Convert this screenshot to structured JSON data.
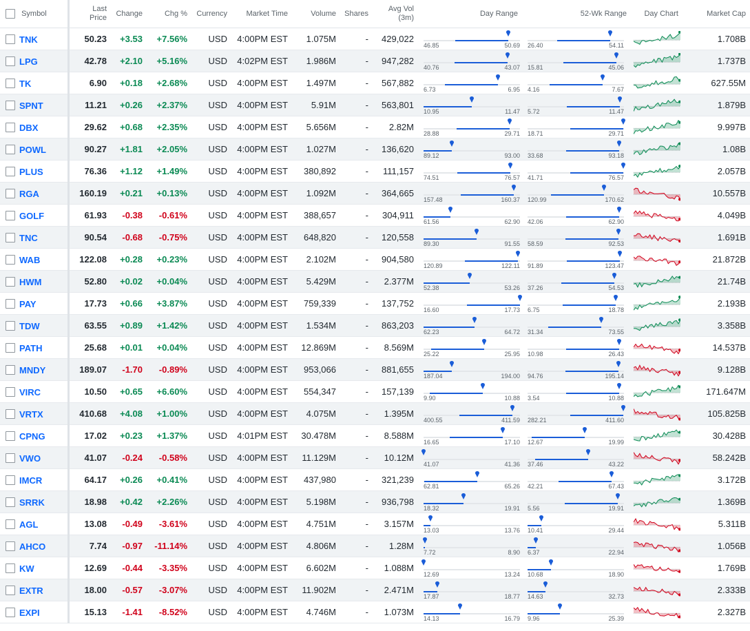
{
  "header": {
    "symbol": "Symbol",
    "last_price": "Last Price",
    "change": "Change",
    "chg_pct": "Chg %",
    "currency": "Currency",
    "market_time": "Market Time",
    "volume": "Volume",
    "shares": "Shares",
    "avg_vol": "Avg Vol (3m)",
    "day_range": "Day Range",
    "wk_range": "52-Wk Range",
    "day_chart": "Day Chart",
    "market_cap": "Market Cap"
  },
  "colors": {
    "up": "#0b8a54",
    "down": "#d0021b",
    "link": "#0f69ff",
    "range_bar": "#1a5dd8"
  },
  "rows": [
    {
      "symbol": "TNK",
      "price": "50.23",
      "change": "+3.53",
      "pct": "+7.56%",
      "currency": "USD",
      "time": "4:00PM EST",
      "volume": "1.075M",
      "shares": "-",
      "avg_vol": "429,022",
      "day_lo": "46.85",
      "day_hi": "50.69",
      "day_price": 50.23,
      "wk_lo": "26.40",
      "wk_hi": "54.11",
      "wk_price": 50.23,
      "market_cap": "1.708B",
      "trend": "up"
    },
    {
      "symbol": "LPG",
      "price": "42.78",
      "change": "+2.10",
      "pct": "+5.16%",
      "currency": "USD",
      "time": "4:02PM EST",
      "volume": "1.986M",
      "shares": "-",
      "avg_vol": "947,282",
      "day_lo": "40.76",
      "day_hi": "43.07",
      "day_price": 42.78,
      "wk_lo": "15.81",
      "wk_hi": "45.06",
      "wk_price": 42.78,
      "market_cap": "1.737B",
      "trend": "up"
    },
    {
      "symbol": "TK",
      "price": "6.90",
      "change": "+0.18",
      "pct": "+2.68%",
      "currency": "USD",
      "time": "4:00PM EST",
      "volume": "1.497M",
      "shares": "-",
      "avg_vol": "567,882",
      "day_lo": "6.73",
      "day_hi": "6.95",
      "day_price": 6.9,
      "wk_lo": "4.16",
      "wk_hi": "7.67",
      "wk_price": 6.9,
      "market_cap": "627.55M",
      "trend": "up"
    },
    {
      "symbol": "SPNT",
      "price": "11.21",
      "change": "+0.26",
      "pct": "+2.37%",
      "currency": "USD",
      "time": "4:00PM EST",
      "volume": "5.91M",
      "shares": "-",
      "avg_vol": "563,801",
      "day_lo": "10.95",
      "day_hi": "11.47",
      "day_price": 11.21,
      "wk_lo": "5.72",
      "wk_hi": "11.47",
      "wk_price": 11.21,
      "market_cap": "1.879B",
      "trend": "up"
    },
    {
      "symbol": "DBX",
      "price": "29.62",
      "change": "+0.68",
      "pct": "+2.35%",
      "currency": "USD",
      "time": "4:00PM EST",
      "volume": "5.656M",
      "shares": "-",
      "avg_vol": "2.82M",
      "day_lo": "28.88",
      "day_hi": "29.71",
      "day_price": 29.62,
      "wk_lo": "18.71",
      "wk_hi": "29.71",
      "wk_price": 29.62,
      "market_cap": "9.997B",
      "trend": "up"
    },
    {
      "symbol": "POWL",
      "price": "90.27",
      "change": "+1.81",
      "pct": "+2.05%",
      "currency": "USD",
      "time": "4:00PM EST",
      "volume": "1.027M",
      "shares": "-",
      "avg_vol": "136,620",
      "day_lo": "89.12",
      "day_hi": "93.00",
      "day_price": 90.27,
      "wk_lo": "33.68",
      "wk_hi": "93.18",
      "wk_price": 90.27,
      "market_cap": "1.08B",
      "trend": "up"
    },
    {
      "symbol": "PLUS",
      "price": "76.36",
      "change": "+1.12",
      "pct": "+1.49%",
      "currency": "USD",
      "time": "4:00PM EST",
      "volume": "380,892",
      "shares": "-",
      "avg_vol": "111,157",
      "day_lo": "74.51",
      "day_hi": "76.57",
      "day_price": 76.36,
      "wk_lo": "41.71",
      "wk_hi": "76.57",
      "wk_price": 76.36,
      "market_cap": "2.057B",
      "trend": "up"
    },
    {
      "symbol": "RGA",
      "price": "160.19",
      "change": "+0.21",
      "pct": "+0.13%",
      "currency": "USD",
      "time": "4:00PM EST",
      "volume": "1.092M",
      "shares": "-",
      "avg_vol": "364,665",
      "day_lo": "157.48",
      "day_hi": "160.37",
      "day_price": 160.19,
      "wk_lo": "120.99",
      "wk_hi": "170.62",
      "wk_price": 160.19,
      "market_cap": "10.557B",
      "trend": "down"
    },
    {
      "symbol": "GOLF",
      "price": "61.93",
      "change": "-0.38",
      "pct": "-0.61%",
      "currency": "USD",
      "time": "4:00PM EST",
      "volume": "388,657",
      "shares": "-",
      "avg_vol": "304,911",
      "day_lo": "61.56",
      "day_hi": "62.90",
      "day_price": 61.93,
      "wk_lo": "42.06",
      "wk_hi": "62.90",
      "wk_price": 61.93,
      "market_cap": "4.049B",
      "trend": "down"
    },
    {
      "symbol": "TNC",
      "price": "90.54",
      "change": "-0.68",
      "pct": "-0.75%",
      "currency": "USD",
      "time": "4:00PM EST",
      "volume": "648,820",
      "shares": "-",
      "avg_vol": "120,558",
      "day_lo": "89.30",
      "day_hi": "91.55",
      "day_price": 90.54,
      "wk_lo": "58.59",
      "wk_hi": "92.53",
      "wk_price": 90.54,
      "market_cap": "1.691B",
      "trend": "down"
    },
    {
      "symbol": "WAB",
      "price": "122.08",
      "change": "+0.28",
      "pct": "+0.23%",
      "currency": "USD",
      "time": "4:00PM EST",
      "volume": "2.102M",
      "shares": "-",
      "avg_vol": "904,580",
      "day_lo": "120.89",
      "day_hi": "122.11",
      "day_price": 122.08,
      "wk_lo": "91.89",
      "wk_hi": "123.47",
      "wk_price": 122.08,
      "market_cap": "21.872B",
      "trend": "down"
    },
    {
      "symbol": "HWM",
      "price": "52.80",
      "change": "+0.02",
      "pct": "+0.04%",
      "currency": "USD",
      "time": "4:00PM EST",
      "volume": "5.429M",
      "shares": "-",
      "avg_vol": "2.377M",
      "day_lo": "52.38",
      "day_hi": "53.26",
      "day_price": 52.8,
      "wk_lo": "37.26",
      "wk_hi": "54.53",
      "wk_price": 52.8,
      "market_cap": "21.74B",
      "trend": "up"
    },
    {
      "symbol": "PAY",
      "price": "17.73",
      "change": "+0.66",
      "pct": "+3.87%",
      "currency": "USD",
      "time": "4:00PM EST",
      "volume": "759,339",
      "shares": "-",
      "avg_vol": "137,752",
      "day_lo": "16.60",
      "day_hi": "17.73",
      "day_price": 17.73,
      "wk_lo": "6.75",
      "wk_hi": "18.78",
      "wk_price": 17.73,
      "market_cap": "2.193B",
      "trend": "up"
    },
    {
      "symbol": "TDW",
      "price": "63.55",
      "change": "+0.89",
      "pct": "+1.42%",
      "currency": "USD",
      "time": "4:00PM EST",
      "volume": "1.534M",
      "shares": "-",
      "avg_vol": "863,203",
      "day_lo": "62.23",
      "day_hi": "64.72",
      "day_price": 63.55,
      "wk_lo": "31.34",
      "wk_hi": "73.55",
      "wk_price": 63.55,
      "market_cap": "3.358B",
      "trend": "up"
    },
    {
      "symbol": "PATH",
      "price": "25.68",
      "change": "+0.01",
      "pct": "+0.04%",
      "currency": "USD",
      "time": "4:00PM EST",
      "volume": "12.869M",
      "shares": "-",
      "avg_vol": "8.569M",
      "day_lo": "25.22",
      "day_hi": "25.95",
      "day_price": 25.68,
      "wk_lo": "10.98",
      "wk_hi": "26.43",
      "wk_price": 25.68,
      "market_cap": "14.537B",
      "trend": "down"
    },
    {
      "symbol": "MNDY",
      "price": "189.07",
      "change": "-1.70",
      "pct": "-0.89%",
      "currency": "USD",
      "time": "4:00PM EST",
      "volume": "953,066",
      "shares": "-",
      "avg_vol": "881,655",
      "day_lo": "187.04",
      "day_hi": "194.00",
      "day_price": 189.07,
      "wk_lo": "94.76",
      "wk_hi": "195.14",
      "wk_price": 189.07,
      "market_cap": "9.128B",
      "trend": "down"
    },
    {
      "symbol": "VIRC",
      "price": "10.50",
      "change": "+0.65",
      "pct": "+6.60%",
      "currency": "USD",
      "time": "4:00PM EST",
      "volume": "554,347",
      "shares": "-",
      "avg_vol": "157,139",
      "day_lo": "9.90",
      "day_hi": "10.88",
      "day_price": 10.5,
      "wk_lo": "3.54",
      "wk_hi": "10.88",
      "wk_price": 10.5,
      "market_cap": "171.647M",
      "trend": "up"
    },
    {
      "symbol": "VRTX",
      "price": "410.68",
      "change": "+4.08",
      "pct": "+1.00%",
      "currency": "USD",
      "time": "4:00PM EST",
      "volume": "4.075M",
      "shares": "-",
      "avg_vol": "1.395M",
      "day_lo": "400.55",
      "day_hi": "411.59",
      "day_price": 410.68,
      "wk_lo": "282.21",
      "wk_hi": "411.60",
      "wk_price": 410.68,
      "market_cap": "105.825B",
      "trend": "down"
    },
    {
      "symbol": "CPNG",
      "price": "17.02",
      "change": "+0.23",
      "pct": "+1.37%",
      "currency": "USD",
      "time": "4:01PM EST",
      "volume": "30.478M",
      "shares": "-",
      "avg_vol": "8.588M",
      "day_lo": "16.65",
      "day_hi": "17.10",
      "day_price": 17.02,
      "wk_lo": "12.67",
      "wk_hi": "19.99",
      "wk_price": 17.02,
      "market_cap": "30.428B",
      "trend": "up"
    },
    {
      "symbol": "VWO",
      "price": "41.07",
      "change": "-0.24",
      "pct": "-0.58%",
      "currency": "USD",
      "time": "4:00PM EST",
      "volume": "11.129M",
      "shares": "-",
      "avg_vol": "10.12M",
      "day_lo": "41.07",
      "day_hi": "41.36",
      "day_price": 41.07,
      "wk_lo": "37.46",
      "wk_hi": "43.22",
      "wk_price": 41.07,
      "market_cap": "58.242B",
      "trend": "down"
    },
    {
      "symbol": "IMCR",
      "price": "64.17",
      "change": "+0.26",
      "pct": "+0.41%",
      "currency": "USD",
      "time": "4:00PM EST",
      "volume": "437,980",
      "shares": "-",
      "avg_vol": "321,239",
      "day_lo": "62.81",
      "day_hi": "65.26",
      "day_price": 64.17,
      "wk_lo": "42.21",
      "wk_hi": "67.43",
      "wk_price": 64.17,
      "market_cap": "3.172B",
      "trend": "up"
    },
    {
      "symbol": "SRRK",
      "price": "18.98",
      "change": "+0.42",
      "pct": "+2.26%",
      "currency": "USD",
      "time": "4:00PM EST",
      "volume": "5.198M",
      "shares": "-",
      "avg_vol": "936,798",
      "day_lo": "18.32",
      "day_hi": "19.91",
      "day_price": 18.98,
      "wk_lo": "5.56",
      "wk_hi": "19.91",
      "wk_price": 18.98,
      "market_cap": "1.369B",
      "trend": "up"
    },
    {
      "symbol": "AGL",
      "price": "13.08",
      "change": "-0.49",
      "pct": "-3.61%",
      "currency": "USD",
      "time": "4:00PM EST",
      "volume": "4.751M",
      "shares": "-",
      "avg_vol": "3.157M",
      "day_lo": "13.03",
      "day_hi": "13.76",
      "day_price": 13.08,
      "wk_lo": "10.41",
      "wk_hi": "29.44",
      "wk_price": 13.08,
      "market_cap": "5.311B",
      "trend": "down"
    },
    {
      "symbol": "AHCO",
      "price": "7.74",
      "change": "-0.97",
      "pct": "-11.14%",
      "currency": "USD",
      "time": "4:00PM EST",
      "volume": "4.806M",
      "shares": "-",
      "avg_vol": "1.28M",
      "day_lo": "7.72",
      "day_hi": "8.90",
      "day_price": 7.74,
      "wk_lo": "6.37",
      "wk_hi": "22.94",
      "wk_price": 7.74,
      "market_cap": "1.056B",
      "trend": "down"
    },
    {
      "symbol": "KW",
      "price": "12.69",
      "change": "-0.44",
      "pct": "-3.35%",
      "currency": "USD",
      "time": "4:00PM EST",
      "volume": "6.602M",
      "shares": "-",
      "avg_vol": "1.088M",
      "day_lo": "12.69",
      "day_hi": "13.24",
      "day_price": 12.69,
      "wk_lo": "10.68",
      "wk_hi": "18.90",
      "wk_price": 12.69,
      "market_cap": "1.769B",
      "trend": "down"
    },
    {
      "symbol": "EXTR",
      "price": "18.00",
      "change": "-0.57",
      "pct": "-3.07%",
      "currency": "USD",
      "time": "4:00PM EST",
      "volume": "11.902M",
      "shares": "-",
      "avg_vol": "2.471M",
      "day_lo": "17.87",
      "day_hi": "18.77",
      "day_price": 18.0,
      "wk_lo": "14.63",
      "wk_hi": "32.73",
      "wk_price": 18.0,
      "market_cap": "2.333B",
      "trend": "down"
    },
    {
      "symbol": "EXPI",
      "price": "15.13",
      "change": "-1.41",
      "pct": "-8.52%",
      "currency": "USD",
      "time": "4:00PM EST",
      "volume": "4.746M",
      "shares": "-",
      "avg_vol": "1.073M",
      "day_lo": "14.13",
      "day_hi": "16.79",
      "day_price": 15.13,
      "wk_lo": "9.96",
      "wk_hi": "25.39",
      "wk_price": 15.13,
      "market_cap": "2.327B",
      "trend": "down"
    }
  ]
}
